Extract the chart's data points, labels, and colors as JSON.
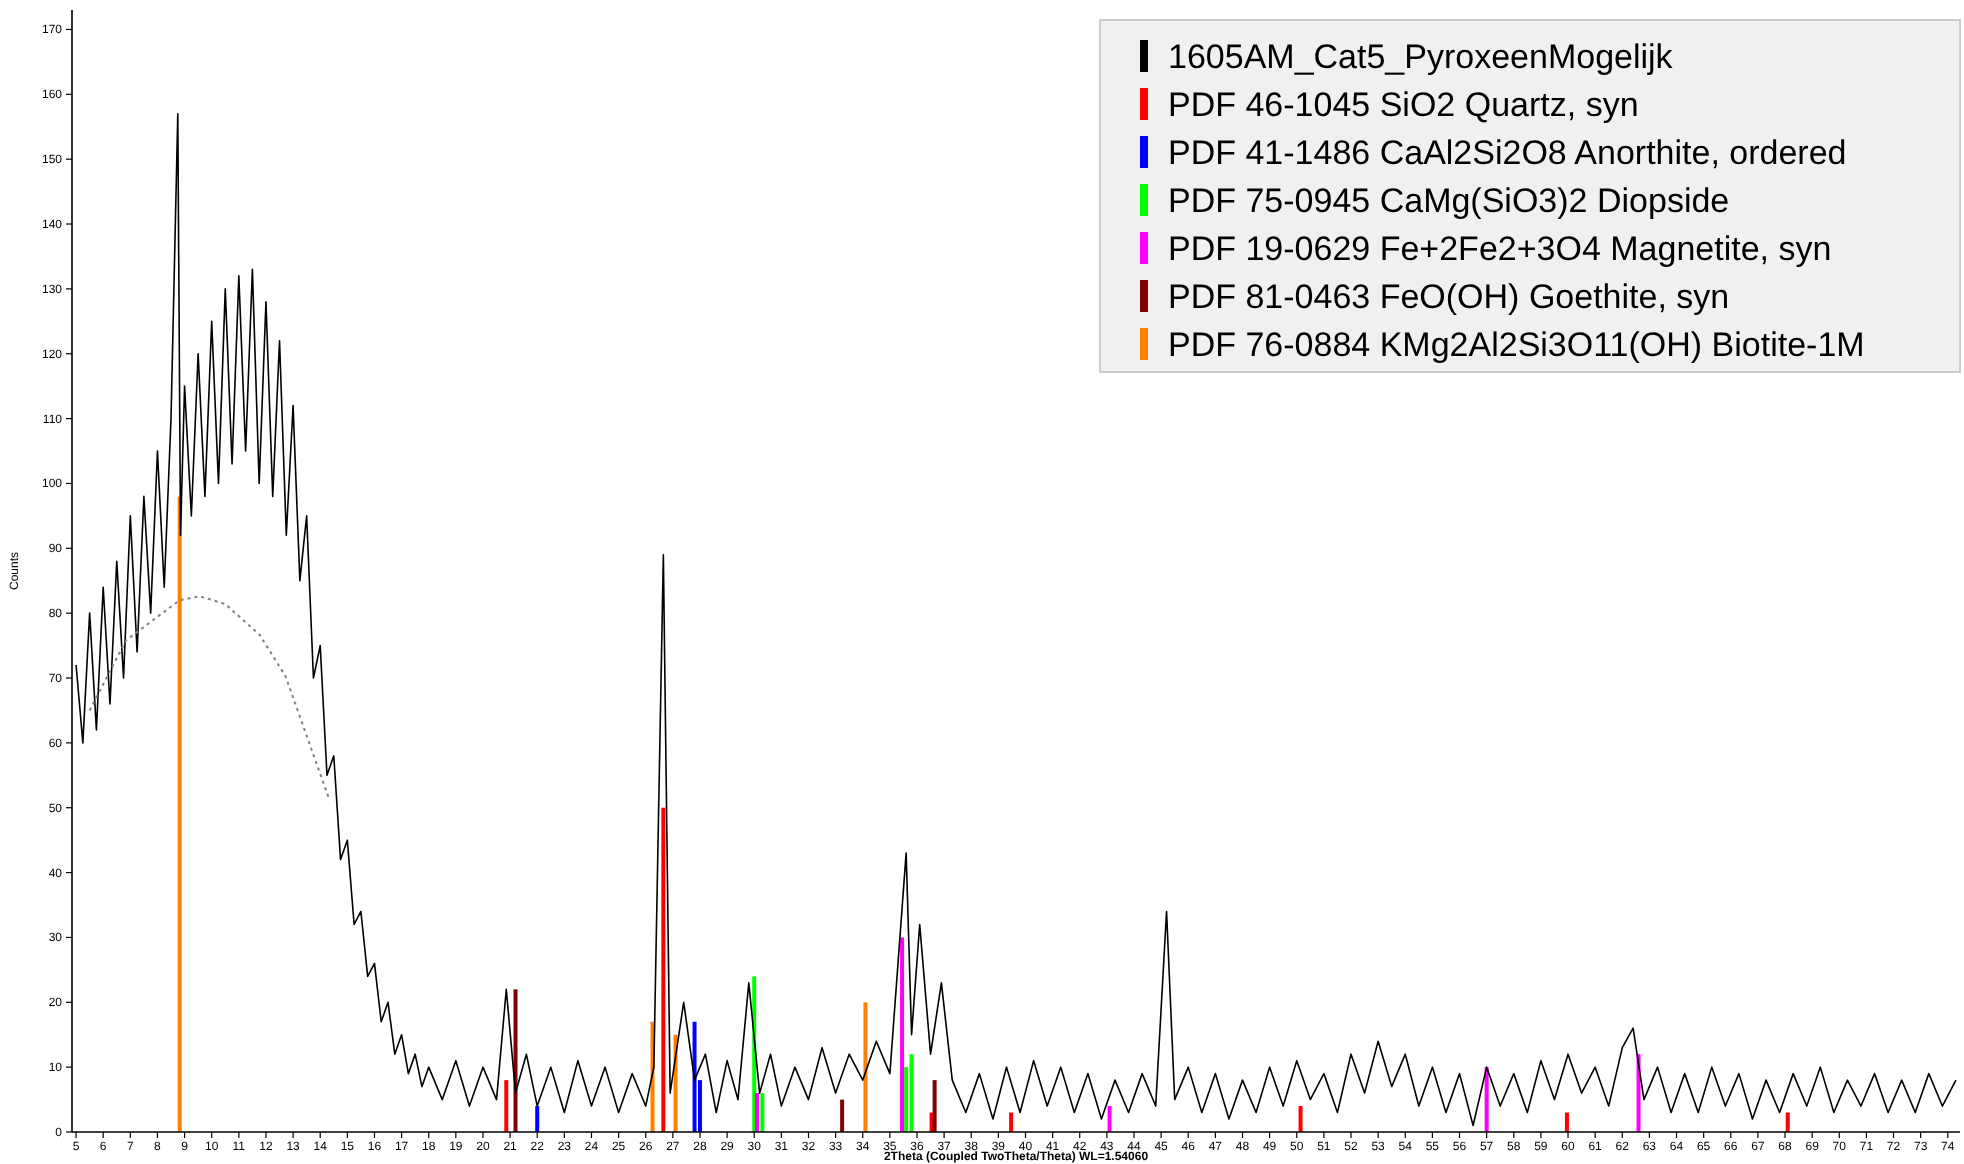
{
  "chart_data": {
    "type": "line",
    "xlabel": "2Theta (Coupled TwoTheta/Theta) WL=1.54060",
    "ylabel": "Counts",
    "xlim": [
      4.85,
      74.45
    ],
    "ylim": [
      0,
      173
    ],
    "xticks": [
      5,
      6,
      7,
      8,
      9,
      10,
      11,
      12,
      13,
      14,
      15,
      16,
      17,
      18,
      19,
      20,
      21,
      22,
      23,
      24,
      25,
      26,
      27,
      28,
      29,
      30,
      31,
      32,
      33,
      34,
      35,
      36,
      37,
      38,
      39,
      40,
      41,
      42,
      43,
      44,
      45,
      46,
      47,
      48,
      49,
      50,
      51,
      52,
      53,
      54,
      55,
      56,
      57,
      58,
      59,
      60,
      61,
      62,
      63,
      64,
      65,
      66,
      67,
      68,
      69,
      70,
      71,
      72,
      73,
      74
    ],
    "yticks": [
      0,
      10,
      20,
      30,
      40,
      50,
      60,
      70,
      80,
      90,
      100,
      110,
      120,
      130,
      140,
      150,
      160,
      170
    ],
    "legend": "top right",
    "grid": false,
    "series": [
      {
        "name": "1605AM_Cat5_PyroxeenMogelijk",
        "color": "#000000",
        "x": [
          5.0,
          5.25,
          5.5,
          5.75,
          6.0,
          6.25,
          6.5,
          6.75,
          7.0,
          7.25,
          7.5,
          7.75,
          8.0,
          8.25,
          8.5,
          8.75,
          8.85,
          9.0,
          9.25,
          9.5,
          9.75,
          10.0,
          10.25,
          10.5,
          10.75,
          11.0,
          11.25,
          11.5,
          11.75,
          12.0,
          12.25,
          12.5,
          12.75,
          13.0,
          13.25,
          13.5,
          13.75,
          14.0,
          14.25,
          14.5,
          14.75,
          15.0,
          15.25,
          15.5,
          15.75,
          16.0,
          16.25,
          16.5,
          16.75,
          17.0,
          17.25,
          17.5,
          17.75,
          18.0,
          18.5,
          19.0,
          19.5,
          20.0,
          20.5,
          20.86,
          21.2,
          21.6,
          22.0,
          22.5,
          23.0,
          23.5,
          24.0,
          24.5,
          25.0,
          25.5,
          26.0,
          26.3,
          26.65,
          26.9,
          27.4,
          27.8,
          28.2,
          28.6,
          29.0,
          29.4,
          29.8,
          30.2,
          30.6,
          31.0,
          31.5,
          32.0,
          32.5,
          33.0,
          33.5,
          34.0,
          34.5,
          35.0,
          35.6,
          35.8,
          36.1,
          36.5,
          36.9,
          37.3,
          37.8,
          38.3,
          38.8,
          39.3,
          39.8,
          40.3,
          40.8,
          41.3,
          41.8,
          42.3,
          42.8,
          43.3,
          43.8,
          44.3,
          44.8,
          45.2,
          45.5,
          46.0,
          46.5,
          47.0,
          47.5,
          48.0,
          48.5,
          49.0,
          49.5,
          50.0,
          50.5,
          51.0,
          51.5,
          52.0,
          52.5,
          53.0,
          53.5,
          54.0,
          54.5,
          55.0,
          55.5,
          56.0,
          56.5,
          57.0,
          57.5,
          58.0,
          58.5,
          59.0,
          59.5,
          60.0,
          60.5,
          61.0,
          61.5,
          62.0,
          62.4,
          62.8,
          63.3,
          63.8,
          64.3,
          64.8,
          65.3,
          65.8,
          66.3,
          66.8,
          67.3,
          67.8,
          68.3,
          68.8,
          69.3,
          69.8,
          70.3,
          70.8,
          71.3,
          71.8,
          72.3,
          72.8,
          73.3,
          73.8,
          74.3
        ],
        "values": [
          72,
          60,
          80,
          62,
          84,
          66,
          88,
          70,
          95,
          74,
          98,
          80,
          105,
          84,
          110,
          157,
          92,
          115,
          95,
          120,
          98,
          125,
          100,
          130,
          103,
          132,
          105,
          133,
          100,
          128,
          98,
          122,
          92,
          112,
          85,
          95,
          70,
          75,
          55,
          58,
          42,
          45,
          32,
          34,
          24,
          26,
          17,
          20,
          12,
          15,
          9,
          12,
          7,
          10,
          5,
          11,
          4,
          10,
          5,
          22,
          6,
          12,
          4,
          10,
          3,
          11,
          4,
          10,
          3,
          9,
          4,
          10,
          89,
          6,
          20,
          8,
          12,
          3,
          11,
          5,
          23,
          6,
          12,
          4,
          10,
          5,
          13,
          6,
          12,
          8,
          14,
          9,
          43,
          15,
          32,
          12,
          23,
          8,
          3,
          9,
          2,
          10,
          3,
          11,
          4,
          10,
          3,
          9,
          2,
          8,
          3,
          9,
          4,
          34,
          5,
          10,
          3,
          9,
          2,
          8,
          3,
          10,
          4,
          11,
          5,
          9,
          3,
          12,
          6,
          14,
          7,
          12,
          4,
          10,
          3,
          9,
          1,
          10,
          4,
          9,
          3,
          11,
          5,
          12,
          6,
          10,
          4,
          13,
          16,
          5,
          10,
          3,
          9,
          3,
          10,
          4,
          9,
          2,
          8,
          3,
          9,
          4,
          10,
          3,
          8,
          4,
          9,
          3,
          8,
          3,
          9,
          4,
          8
        ]
      },
      {
        "type": "line",
        "line_style": "dotted",
        "color": "#808080",
        "x": [
          5.5,
          6.84,
          8.82,
          9.56,
          10.5,
          11.76,
          12.72,
          14.34
        ],
        "values": [
          65,
          75.8,
          82,
          82.6,
          81.4,
          76.7,
          70.3,
          51.2
        ]
      },
      {
        "name": "PDF 46-1045 SiO2 Quartz, syn",
        "type": "bar",
        "color": "#ff0000",
        "x": [
          20.86,
          26.65,
          36.54,
          39.47,
          50.14,
          59.96,
          68.1
        ],
        "values": [
          8,
          50,
          3,
          3,
          4,
          3,
          3
        ]
      },
      {
        "name": "PDF 41-1486 CaAl2Si2O8 Anorthite, ordered",
        "type": "bar",
        "color": "#0000ff",
        "x": [
          22.0,
          27.8,
          28.0
        ],
        "values": [
          4,
          17,
          8
        ]
      },
      {
        "name": "PDF 75-0945 CaMg(SiO3)2 Diopside",
        "type": "bar",
        "color": "#00ff00",
        "x": [
          30.0,
          30.3,
          35.6,
          35.8
        ],
        "values": [
          24,
          6,
          10,
          12
        ]
      },
      {
        "name": "PDF 19-0629 Fe+2Fe2+3O4 Magnetite, syn",
        "type": "bar",
        "color": "#ff00ff",
        "x": [
          30.1,
          35.45,
          43.1,
          57.0,
          62.6
        ],
        "values": [
          6,
          30,
          4,
          10,
          12
        ]
      },
      {
        "name": "PDF 81-0463 FeO(OH) Goethite, syn",
        "type": "bar",
        "color": "#800000",
        "x": [
          21.2,
          33.24,
          36.65
        ],
        "values": [
          22,
          5,
          8
        ]
      },
      {
        "name": "PDF 76-0884 KMg2Al2Si3O11(OH) Biotite-1M",
        "type": "bar",
        "color": "#ff8000",
        "x": [
          8.82,
          26.25,
          27.1,
          34.1
        ],
        "values": [
          98,
          17,
          15,
          20
        ]
      }
    ]
  }
}
